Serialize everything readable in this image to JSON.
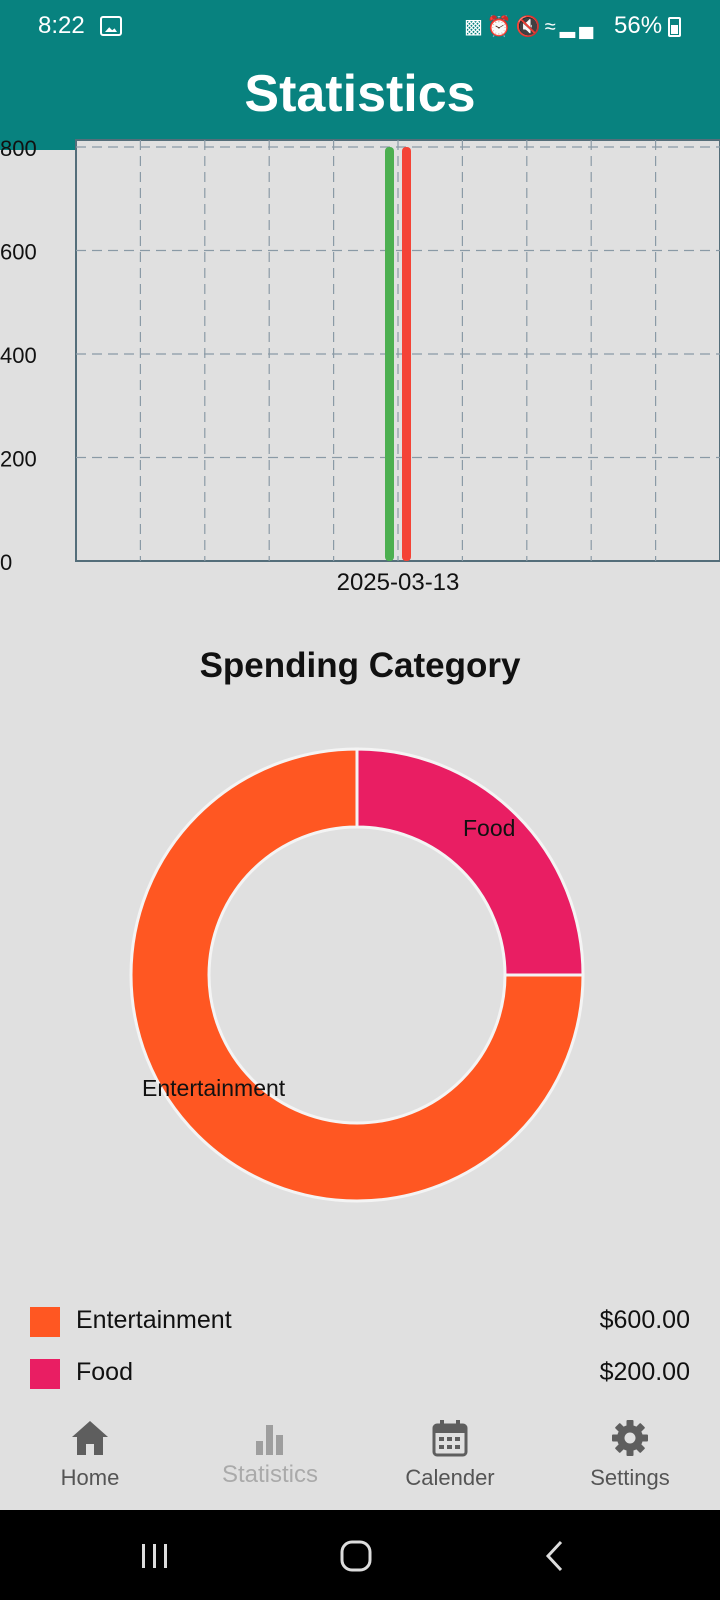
{
  "status_bar": {
    "time": "8:22",
    "battery": "56%",
    "icons": [
      "image-icon",
      "notification-lock-icon",
      "alarm-icon",
      "mute-icon",
      "wifi-icon",
      "signal-icon",
      "battery-icon"
    ]
  },
  "header": {
    "title": "Statistics"
  },
  "chart_data": [
    {
      "type": "bar",
      "categories": [
        "2025-03-13"
      ],
      "series": [
        {
          "values": [
            800
          ],
          "color": "#4caf50"
        },
        {
          "values": [
            800
          ],
          "color": "#f44336"
        }
      ],
      "yticks": [
        "0",
        "200",
        "400",
        "600",
        "800"
      ],
      "ylim": [
        0,
        800
      ],
      "grid": true
    },
    {
      "type": "pie",
      "title": "Spending Category",
      "labels": [
        "Entertainment",
        "Food"
      ],
      "values": [
        600,
        200
      ],
      "colors": [
        "#ff5722",
        "#e91e63"
      ]
    }
  ],
  "legend": {
    "items": [
      {
        "name": "Entertainment",
        "amount": "$600.00",
        "color": "#ff5722"
      },
      {
        "name": "Food",
        "amount": "$200.00",
        "color": "#e91e63"
      }
    ]
  },
  "nav": {
    "items": [
      {
        "label": "Home",
        "icon": "home-icon"
      },
      {
        "label": "Statistics",
        "icon": "bar-chart-icon"
      },
      {
        "label": "Calender",
        "icon": "calendar-icon"
      },
      {
        "label": "Settings",
        "icon": "gear-icon"
      }
    ]
  },
  "theme": {
    "primary": "#08827f",
    "background": "#e0e0e0"
  }
}
